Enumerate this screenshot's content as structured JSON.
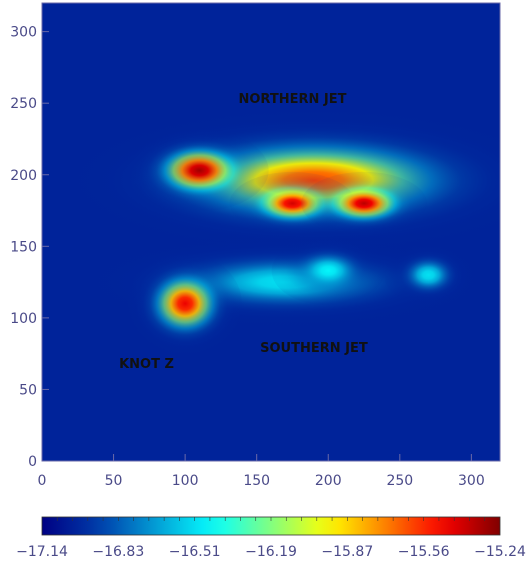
{
  "chart_data": {
    "type": "heatmap",
    "title": "",
    "xlabel": "",
    "ylabel": "",
    "xlim": [
      0,
      320
    ],
    "ylim": [
      0,
      320
    ],
    "x_ticks": [
      0,
      50,
      100,
      150,
      200,
      250,
      300
    ],
    "x_tick_labels": [
      "0",
      "50",
      "100",
      "150",
      "200",
      "250",
      "300"
    ],
    "y_ticks": [
      0,
      50,
      100,
      150,
      200,
      250,
      300
    ],
    "y_tick_labels": [
      "0",
      "50",
      "100",
      "150",
      "200",
      "250",
      "300"
    ],
    "colorbar": {
      "range": [
        -17.14,
        -15.24
      ],
      "tick_labels": [
        "−17.14",
        "−16.83",
        "−16.51",
        "−16.19",
        "−15.87",
        "−15.56",
        "−15.24"
      ],
      "colormap": "jet"
    },
    "background_level": -17.0,
    "emission_regions": [
      {
        "name": "northern-jet-body",
        "center_x": 190,
        "center_y": 196,
        "sigma_x": 75,
        "sigma_y": 22,
        "peak": -15.6
      },
      {
        "name": "northern-jet-peak-1",
        "center_x": 110,
        "center_y": 203,
        "sigma_x": 22,
        "sigma_y": 13,
        "peak": -15.3
      },
      {
        "name": "northern-jet-peak-2",
        "center_x": 175,
        "center_y": 180,
        "sigma_x": 20,
        "sigma_y": 10,
        "peak": -15.4
      },
      {
        "name": "northern-jet-peak-3",
        "center_x": 225,
        "center_y": 180,
        "sigma_x": 20,
        "sigma_y": 10,
        "peak": -15.35
      },
      {
        "name": "southern-jet-bridge",
        "center_x": 170,
        "center_y": 125,
        "sigma_x": 65,
        "sigma_y": 15,
        "peak": -16.5
      },
      {
        "name": "knot-z",
        "center_x": 100,
        "center_y": 110,
        "sigma_x": 18,
        "sigma_y": 16,
        "peak": -15.45
      },
      {
        "name": "southern-blob-1",
        "center_x": 200,
        "center_y": 133,
        "sigma_x": 18,
        "sigma_y": 11,
        "peak": -16.45
      },
      {
        "name": "southern-blob-2",
        "center_x": 270,
        "center_y": 130,
        "sigma_x": 14,
        "sigma_y": 10,
        "peak": -16.5
      }
    ],
    "annotations": [
      {
        "text": "NORTHERN JET",
        "x": 175,
        "y": 250
      },
      {
        "text": "KNOT Z",
        "x": 73,
        "y": 65
      },
      {
        "text": "SOUTHERN JET",
        "x": 190,
        "y": 76
      }
    ]
  }
}
